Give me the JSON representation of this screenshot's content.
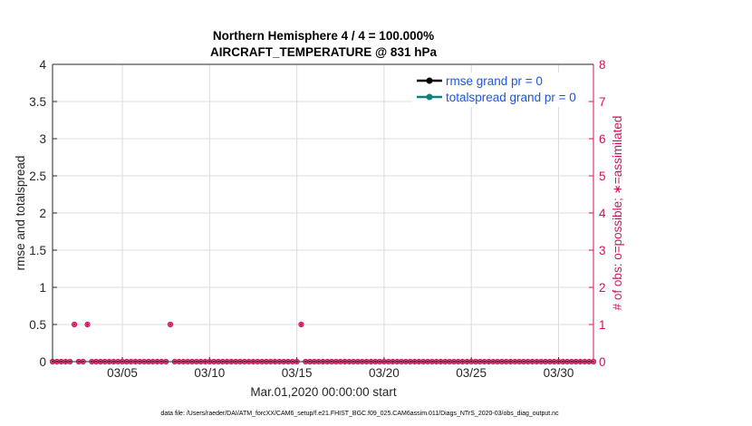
{
  "chart_data": {
    "type": "scatter",
    "title": "Northern Hemisphere 4 / 4 = 100.000%",
    "subtitle": "AIRCRAFT_TEMPERATURE @ 831 hPa",
    "xlabel": "Mar.01,2020 00:00:00 start",
    "ylabel": "rmse and totalspread",
    "ylabel_right": "# of obs: o=possible; ∗=assimilated",
    "x_start_day": 1,
    "x_end_day": 32,
    "xlim": [
      "2020-03-01",
      "2020-04-01"
    ],
    "x_ticks": [
      "03/05",
      "03/10",
      "03/15",
      "03/20",
      "03/25",
      "03/30"
    ],
    "x_tick_days": [
      5,
      10,
      15,
      20,
      25,
      30
    ],
    "ylim": [
      0,
      4
    ],
    "y_ticks": [
      "0",
      "0.5",
      "1",
      "1.5",
      "2",
      "2.5",
      "3",
      "3.5",
      "4"
    ],
    "ylim_right": [
      0,
      8
    ],
    "y_ticks_right": [
      "0",
      "1",
      "2",
      "3",
      "4",
      "5",
      "6",
      "7",
      "8"
    ],
    "grid": true,
    "legend_position": "top-right",
    "series": [
      {
        "name": "rmse grand pr = 0",
        "color": "#000000",
        "values": []
      },
      {
        "name": "totalspread grand pr = 0",
        "color": "#0f7f7f",
        "values": []
      },
      {
        "name": "obs possible",
        "color": "#d6105a",
        "axis": "right",
        "marker": "o"
      },
      {
        "name": "obs assimilated",
        "color": "#d6105a",
        "axis": "right",
        "marker": "*"
      }
    ],
    "obs_start_day": 1.0,
    "obs_step_days": 0.25,
    "obs_count_values": [
      0,
      0,
      0,
      0,
      0,
      1,
      0,
      0,
      1,
      0,
      0,
      0,
      0,
      0,
      0,
      0,
      0,
      0,
      0,
      0,
      0,
      0,
      0,
      0,
      0,
      0,
      0,
      1,
      0,
      0,
      0,
      0,
      0,
      0,
      0,
      0,
      0,
      0,
      0,
      0,
      0,
      0,
      0,
      0,
      0,
      0,
      0,
      0,
      0,
      0,
      0,
      0,
      0,
      0,
      0,
      0,
      0,
      1,
      0,
      0,
      0,
      0,
      0,
      0,
      0,
      0,
      0,
      0,
      0,
      0,
      0,
      0,
      0,
      0,
      0,
      0,
      0,
      0,
      0,
      0,
      0,
      0,
      0,
      0,
      0,
      0,
      0,
      0,
      0,
      0,
      0,
      0,
      0,
      0,
      0,
      0,
      0,
      0,
      0,
      0,
      0,
      0,
      0,
      0,
      0,
      0,
      0,
      0,
      0,
      0,
      0,
      0,
      0,
      0,
      0,
      0,
      0,
      0,
      0,
      0,
      0,
      0,
      0,
      0,
      0
    ]
  },
  "footer": {
    "text": "data file: /Users/raeder/DAI/ATM_forcXX/CAM6_setup/f.e21.FHIST_BGC.f09_025.CAM6assim.011/Diags_NTrS_2020-03/obs_diag_output.nc"
  }
}
